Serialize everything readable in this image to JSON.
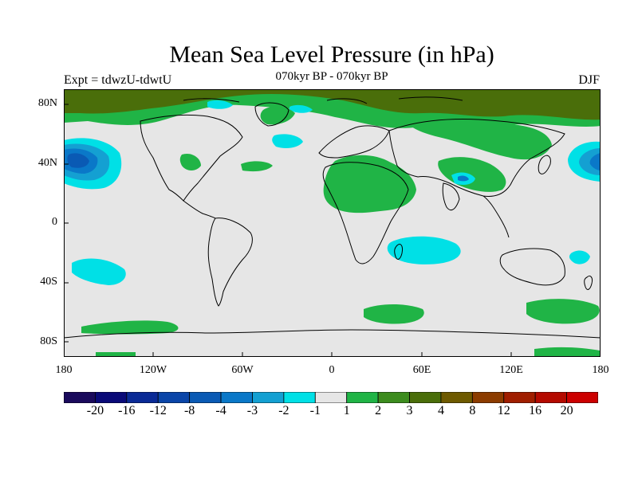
{
  "title": "Mean Sea Level Pressure (in hPa)",
  "subtitle": "070kyr BP - 070kyr BP",
  "experiment": "Expt = tdwzU-tdwtU",
  "season": "DJF",
  "lat_labels": [
    "80N",
    "40N",
    "0",
    "40S",
    "80S"
  ],
  "lon_labels": [
    "180",
    "120W",
    "60W",
    "0",
    "60E",
    "120E",
    "180"
  ],
  "colorbar": {
    "labels": [
      "-20",
      "-16",
      "-12",
      "-8",
      "-4",
      "-3",
      "-2",
      "-1",
      "1",
      "2",
      "3",
      "4",
      "8",
      "12",
      "16",
      "20"
    ],
    "colors": [
      "#1a0a5c",
      "#0a0a78",
      "#0a2a96",
      "#0a45a8",
      "#0a5ab4",
      "#0a78c8",
      "#14a0d2",
      "#00e0e6",
      "#e6e6e6",
      "#20b446",
      "#3c8c1e",
      "#4a6e0a",
      "#6e5a00",
      "#8c3c00",
      "#a01e00",
      "#b40a00",
      "#cc0000"
    ]
  },
  "colors": {
    "background": "#e6e6e6",
    "green": "#20b446",
    "dark_green": "#4a6e0a",
    "cyan": "#00e0e6",
    "light_blue": "#14a0d2",
    "blue": "#0a78c8",
    "mid_blue": "#0a5ab4"
  },
  "chart_data": {
    "type": "heatmap",
    "title": "Mean Sea Level Pressure (in hPa)",
    "subtitle": "070kyr BP - 070kyr BP",
    "units": "hPa",
    "x_range": [
      -180,
      180
    ],
    "y_range": [
      -90,
      90
    ]
  }
}
